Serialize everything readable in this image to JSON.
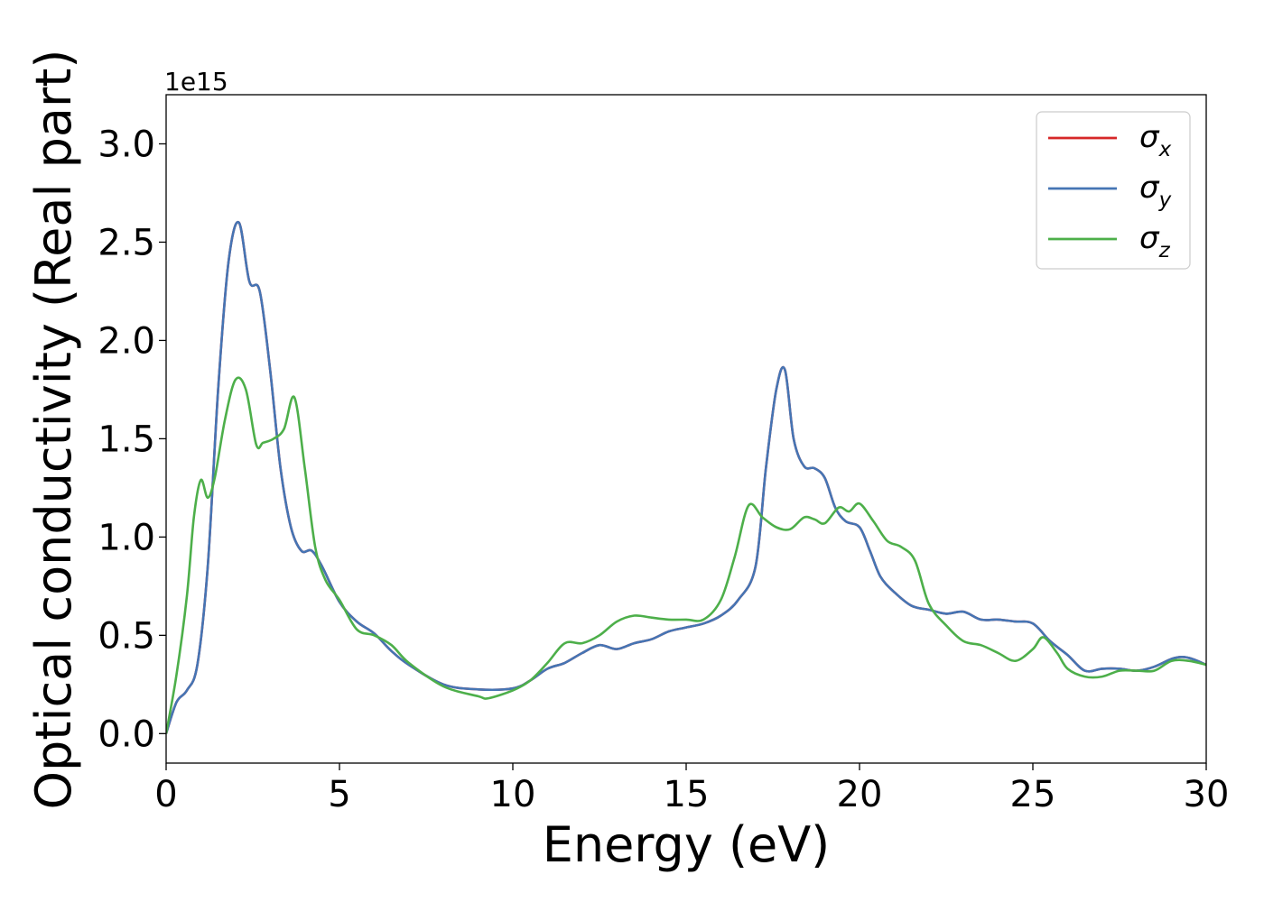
{
  "chart_data": {
    "type": "line",
    "xlabel": "Energy (eV)",
    "ylabel": "Optical conductivity (Real part)",
    "y_offset_label": "1e15",
    "xlim": [
      0,
      30
    ],
    "ylim": [
      -0.15,
      3.25
    ],
    "xticks": [
      0,
      5,
      10,
      15,
      20,
      25,
      30
    ],
    "xtick_labels": [
      "0",
      "5",
      "10",
      "15",
      "20",
      "25",
      "30"
    ],
    "yticks": [
      0.0,
      0.5,
      1.0,
      1.5,
      2.0,
      2.5,
      3.0
    ],
    "ytick_labels": [
      "0.0",
      "0.5",
      "1.0",
      "1.5",
      "2.0",
      "2.5",
      "3.0"
    ],
    "grid": false,
    "legend_position": "top-right",
    "series": [
      {
        "name": "σx",
        "color": "#d62728",
        "x": [
          0,
          0.3,
          0.6,
          0.9,
          1.2,
          1.5,
          1.8,
          2.1,
          2.4,
          2.7,
          3.0,
          3.3,
          3.6,
          3.9,
          4.2,
          4.5,
          5.0,
          5.5,
          6.0,
          6.5,
          7.0,
          8.0,
          9.0,
          10.0,
          10.5,
          11.0,
          11.5,
          12.0,
          12.5,
          13.0,
          13.5,
          14.0,
          14.5,
          15.0,
          15.5,
          16.0,
          16.5,
          17.0,
          17.3,
          17.6,
          17.85,
          18.1,
          18.4,
          18.7,
          19.0,
          19.3,
          19.6,
          20.0,
          20.3,
          20.6,
          21.0,
          21.5,
          22.0,
          22.5,
          23.0,
          23.5,
          24.0,
          24.5,
          25.0,
          25.5,
          26.0,
          26.5,
          27.0,
          27.5,
          28.0,
          28.5,
          29.0,
          29.3,
          29.6,
          30.0
        ],
        "y": [
          0.0,
          0.16,
          0.22,
          0.35,
          0.85,
          1.75,
          2.4,
          2.6,
          2.3,
          2.25,
          1.85,
          1.35,
          1.05,
          0.93,
          0.93,
          0.85,
          0.67,
          0.57,
          0.51,
          0.42,
          0.35,
          0.25,
          0.225,
          0.23,
          0.27,
          0.33,
          0.36,
          0.41,
          0.45,
          0.43,
          0.46,
          0.48,
          0.52,
          0.54,
          0.56,
          0.6,
          0.68,
          0.85,
          1.35,
          1.75,
          1.85,
          1.5,
          1.36,
          1.35,
          1.3,
          1.15,
          1.08,
          1.05,
          0.93,
          0.8,
          0.72,
          0.65,
          0.63,
          0.61,
          0.62,
          0.58,
          0.58,
          0.57,
          0.56,
          0.47,
          0.4,
          0.32,
          0.33,
          0.33,
          0.32,
          0.34,
          0.38,
          0.39,
          0.38,
          0.35
        ]
      },
      {
        "name": "σy",
        "color": "#4575b4",
        "x": [
          0,
          0.3,
          0.6,
          0.9,
          1.2,
          1.5,
          1.8,
          2.1,
          2.4,
          2.7,
          3.0,
          3.3,
          3.6,
          3.9,
          4.2,
          4.5,
          5.0,
          5.5,
          6.0,
          6.5,
          7.0,
          8.0,
          9.0,
          10.0,
          10.5,
          11.0,
          11.5,
          12.0,
          12.5,
          13.0,
          13.5,
          14.0,
          14.5,
          15.0,
          15.5,
          16.0,
          16.5,
          17.0,
          17.3,
          17.6,
          17.85,
          18.1,
          18.4,
          18.7,
          19.0,
          19.3,
          19.6,
          20.0,
          20.3,
          20.6,
          21.0,
          21.5,
          22.0,
          22.5,
          23.0,
          23.5,
          24.0,
          24.5,
          25.0,
          25.5,
          26.0,
          26.5,
          27.0,
          27.5,
          28.0,
          28.5,
          29.0,
          29.3,
          29.6,
          30.0
        ],
        "y": [
          0.0,
          0.16,
          0.22,
          0.35,
          0.85,
          1.75,
          2.4,
          2.6,
          2.3,
          2.25,
          1.85,
          1.35,
          1.05,
          0.93,
          0.93,
          0.85,
          0.67,
          0.57,
          0.51,
          0.42,
          0.35,
          0.25,
          0.225,
          0.23,
          0.27,
          0.33,
          0.36,
          0.41,
          0.45,
          0.43,
          0.46,
          0.48,
          0.52,
          0.54,
          0.56,
          0.6,
          0.68,
          0.85,
          1.35,
          1.75,
          1.85,
          1.5,
          1.36,
          1.35,
          1.3,
          1.15,
          1.08,
          1.05,
          0.93,
          0.8,
          0.72,
          0.65,
          0.63,
          0.61,
          0.62,
          0.58,
          0.58,
          0.57,
          0.56,
          0.47,
          0.4,
          0.32,
          0.33,
          0.33,
          0.32,
          0.34,
          0.38,
          0.39,
          0.38,
          0.35
        ]
      },
      {
        "name": "σz",
        "color": "#4daf4a",
        "x": [
          0,
          0.3,
          0.6,
          0.8,
          1.0,
          1.2,
          1.4,
          1.7,
          2.0,
          2.3,
          2.6,
          2.8,
          3.1,
          3.4,
          3.7,
          4.0,
          4.3,
          4.6,
          5.0,
          5.5,
          6.0,
          6.5,
          7.0,
          8.0,
          9.0,
          9.3,
          10.0,
          10.5,
          11.0,
          11.5,
          12.0,
          12.5,
          13.0,
          13.5,
          14.0,
          14.5,
          15.0,
          15.5,
          16.0,
          16.4,
          16.8,
          17.2,
          17.6,
          18.0,
          18.4,
          18.7,
          19.0,
          19.4,
          19.7,
          20.0,
          20.4,
          20.8,
          21.2,
          21.6,
          22.0,
          22.5,
          23.0,
          23.5,
          24.0,
          24.5,
          25.0,
          25.3,
          25.7,
          26.0,
          26.5,
          27.0,
          27.5,
          28.0,
          28.5,
          29.0,
          29.5,
          30.0
        ],
        "y": [
          0.0,
          0.3,
          0.7,
          1.1,
          1.29,
          1.2,
          1.3,
          1.6,
          1.8,
          1.75,
          1.47,
          1.48,
          1.5,
          1.55,
          1.71,
          1.35,
          0.95,
          0.78,
          0.68,
          0.53,
          0.5,
          0.45,
          0.36,
          0.24,
          0.19,
          0.18,
          0.22,
          0.27,
          0.36,
          0.46,
          0.46,
          0.5,
          0.57,
          0.6,
          0.59,
          0.58,
          0.58,
          0.58,
          0.68,
          0.9,
          1.16,
          1.1,
          1.05,
          1.04,
          1.1,
          1.09,
          1.07,
          1.15,
          1.13,
          1.17,
          1.08,
          0.98,
          0.95,
          0.88,
          0.66,
          0.55,
          0.47,
          0.45,
          0.41,
          0.37,
          0.43,
          0.49,
          0.41,
          0.33,
          0.29,
          0.29,
          0.32,
          0.32,
          0.32,
          0.37,
          0.37,
          0.35
        ]
      }
    ]
  }
}
